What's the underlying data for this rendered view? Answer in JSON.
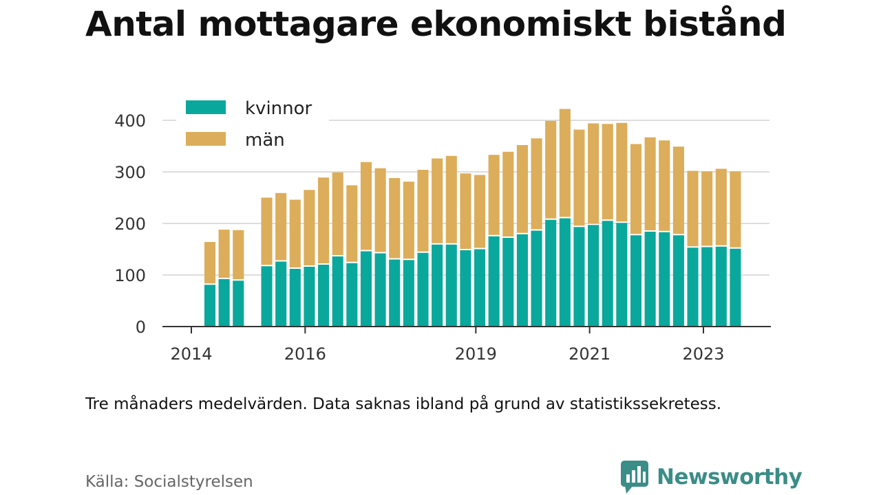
{
  "title": "Antal mottagare ekonomiskt bistånd",
  "note": "Tre månaders medelvärden. Data saknas ibland på grund av statistikssekretess.",
  "source": "Källa: Socialstyrelsen",
  "brand": {
    "name": "Newsworthy",
    "icon": "newsworthy-chat-bars-icon",
    "color": "#3b8d87"
  },
  "chart_data": {
    "type": "bar",
    "stacked": true,
    "title": "Antal mottagare ekonomiskt bistånd",
    "xlabel": "",
    "ylabel": "",
    "ylim": [
      0,
      430
    ],
    "yticks": [
      0,
      100,
      200,
      300,
      400
    ],
    "grid": true,
    "legend_position": "top-left",
    "x_tick_labels": [
      {
        "label": "2014",
        "at": 0
      },
      {
        "label": "2016",
        "at": 8
      },
      {
        "label": "2019",
        "at": 20
      },
      {
        "label": "2021",
        "at": 28
      },
      {
        "label": "2023",
        "at": 36
      }
    ],
    "n_slots": 42,
    "first_slot": 3,
    "series": [
      {
        "name": "kvinnor",
        "color": "#0aa89c",
        "values": [
          81,
          92,
          89,
          null,
          117,
          126,
          112,
          116,
          120,
          136,
          123,
          146,
          142,
          130,
          129,
          143,
          159,
          159,
          148,
          150,
          175,
          172,
          179,
          186,
          207,
          210,
          193,
          197,
          205,
          201,
          177,
          184,
          183,
          177,
          153,
          154,
          155,
          151
        ]
      },
      {
        "name": "män",
        "color": "#dcad5a",
        "values": [
          83,
          96,
          98,
          null,
          133,
          133,
          134,
          149,
          169,
          163,
          151,
          173,
          165,
          158,
          152,
          161,
          167,
          172,
          149,
          144,
          158,
          167,
          173,
          179,
          192,
          212,
          189,
          197,
          188,
          194,
          177,
          183,
          178,
          172,
          149,
          147,
          151,
          150
        ]
      }
    ]
  }
}
